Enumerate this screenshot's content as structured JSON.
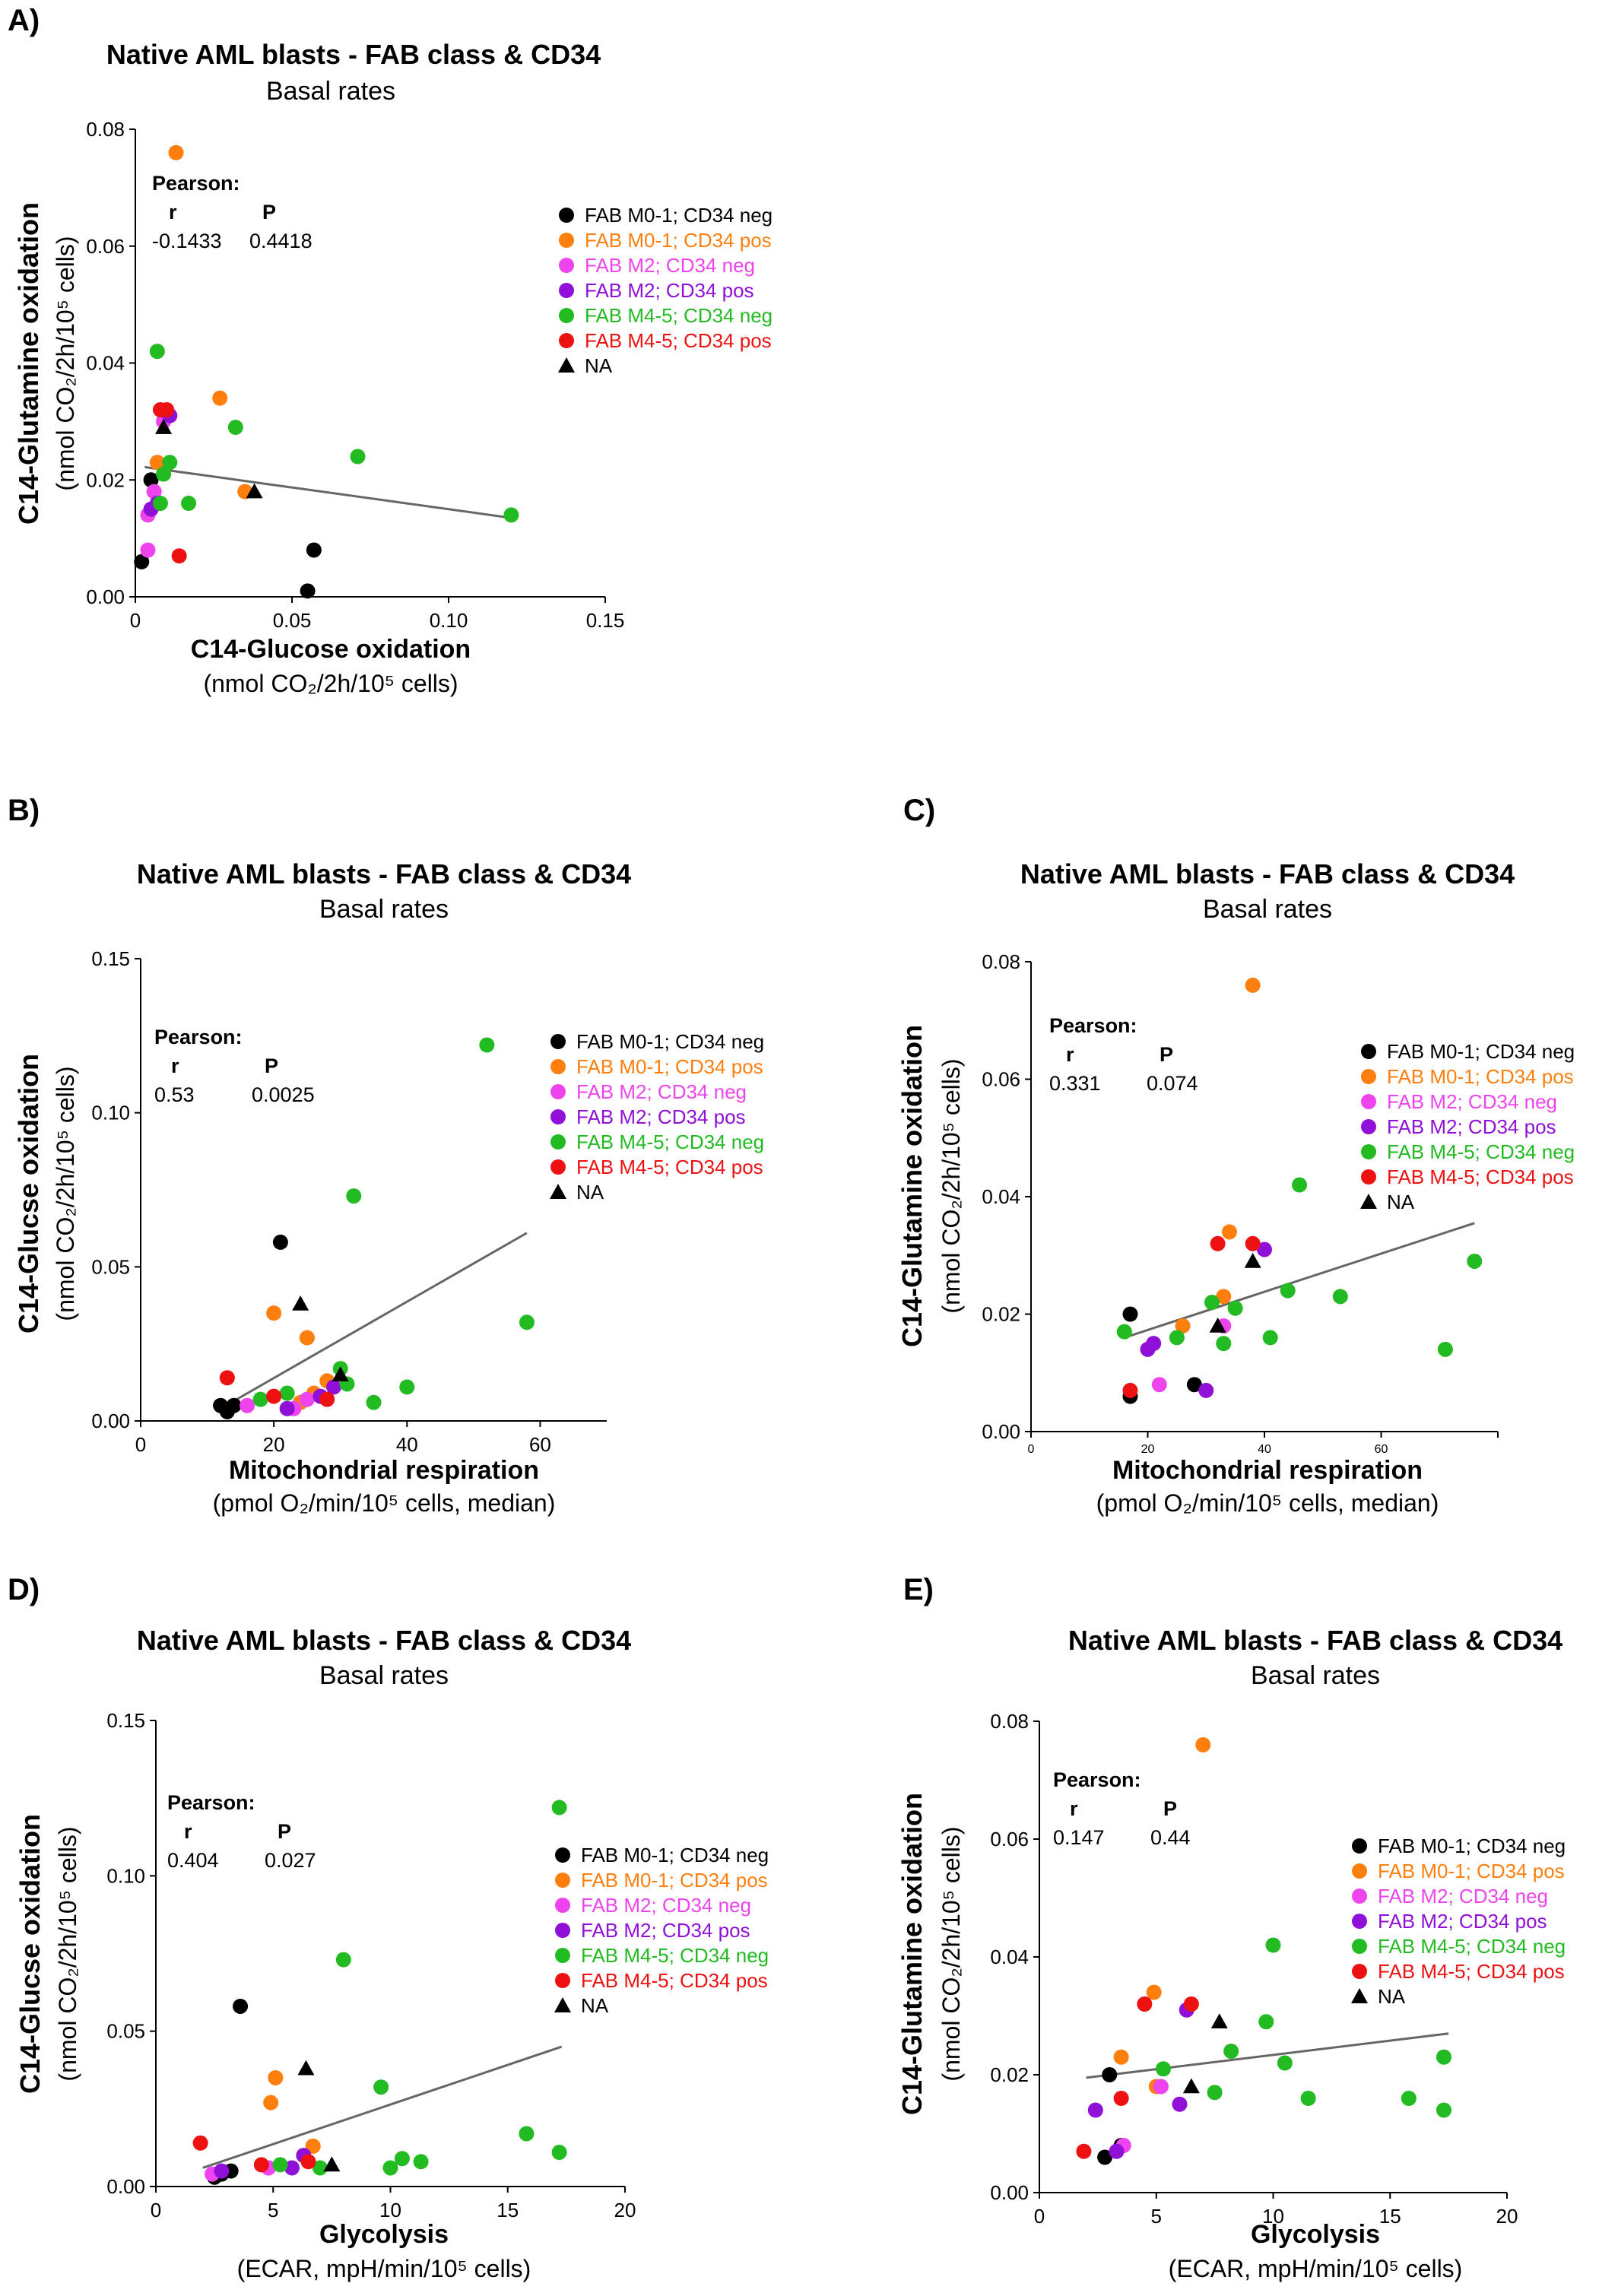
{
  "legend_items": [
    {
      "label": "FAB M0-1; CD34 neg",
      "color": "#000000",
      "marker": "circle"
    },
    {
      "label": "FAB M0-1; CD34 pos",
      "color": "#ff7f0e",
      "marker": "circle"
    },
    {
      "label": "FAB M2; CD34 neg",
      "color": "#ee44ee",
      "marker": "circle"
    },
    {
      "label": "FAB M2; CD34 pos",
      "color": "#9010d8",
      "marker": "circle"
    },
    {
      "label": "FAB M4-5; CD34 neg",
      "color": "#22bb22",
      "marker": "circle"
    },
    {
      "label": "FAB M4-5; CD34 pos",
      "color": "#ee1111",
      "marker": "circle"
    },
    {
      "label": "NA",
      "color": "#000000",
      "marker": "triangle"
    }
  ],
  "chart_data": [
    {
      "panel": "A)",
      "type": "scatter",
      "title": "Native AML blasts - FAB class & CD34",
      "subtitle": "Basal rates",
      "xlabel": "C14-Glucose oxidation",
      "xlabel_unit": "(nmol CO₂/2h/10⁵ cells)",
      "ylabel": "C14-Glutamine oxidation",
      "ylabel_unit": "(nmol CO₂/2h/10⁵ cells)",
      "xlim": [
        0,
        0.15
      ],
      "ylim": [
        0,
        0.08
      ],
      "xticks": [
        "0",
        "0.05",
        "0.10",
        "0.15"
      ],
      "xtick_values": [
        0,
        0.05,
        0.1,
        0.15
      ],
      "yticks": [
        "0.00",
        "0.02",
        "0.04",
        "0.06",
        "0.08"
      ],
      "ytick_values": [
        0,
        0.02,
        0.04,
        0.06,
        0.08
      ],
      "stats": {
        "heading": "Pearson:",
        "r_label": "r",
        "p_label": "P",
        "r": "-0.1433",
        "p": "0.4418"
      },
      "regression": [
        [
          0.003,
          0.0222
        ],
        [
          0.12,
          0.0135
        ]
      ],
      "points": [
        {
          "x": 0.002,
          "y": 0.006,
          "g": 0
        },
        {
          "x": 0.005,
          "y": 0.02,
          "g": 0
        },
        {
          "x": 0.055,
          "y": 0.001,
          "g": 0
        },
        {
          "x": 0.057,
          "y": 0.008,
          "g": 0
        },
        {
          "x": 0.013,
          "y": 0.076,
          "g": 1
        },
        {
          "x": 0.027,
          "y": 0.034,
          "g": 1
        },
        {
          "x": 0.007,
          "y": 0.023,
          "g": 1
        },
        {
          "x": 0.035,
          "y": 0.018,
          "g": 1
        },
        {
          "x": 0.004,
          "y": 0.008,
          "g": 2
        },
        {
          "x": 0.004,
          "y": 0.014,
          "g": 2
        },
        {
          "x": 0.006,
          "y": 0.018,
          "g": 2
        },
        {
          "x": 0.009,
          "y": 0.03,
          "g": 2
        },
        {
          "x": 0.011,
          "y": 0.031,
          "g": 3
        },
        {
          "x": 0.005,
          "y": 0.015,
          "g": 3
        },
        {
          "x": 0.007,
          "y": 0.016,
          "g": 3
        },
        {
          "x": 0.007,
          "y": 0.042,
          "g": 4
        },
        {
          "x": 0.032,
          "y": 0.029,
          "g": 4
        },
        {
          "x": 0.071,
          "y": 0.024,
          "g": 4
        },
        {
          "x": 0.12,
          "y": 0.014,
          "g": 4
        },
        {
          "x": 0.011,
          "y": 0.023,
          "g": 4
        },
        {
          "x": 0.009,
          "y": 0.021,
          "g": 4
        },
        {
          "x": 0.008,
          "y": 0.016,
          "g": 4
        },
        {
          "x": 0.017,
          "y": 0.016,
          "g": 4
        },
        {
          "x": 0.008,
          "y": 0.032,
          "g": 5
        },
        {
          "x": 0.01,
          "y": 0.032,
          "g": 5
        },
        {
          "x": 0.014,
          "y": 0.007,
          "g": 5
        },
        {
          "x": 0.009,
          "y": 0.029,
          "g": 6
        },
        {
          "x": 0.038,
          "y": 0.018,
          "g": 6
        }
      ]
    },
    {
      "panel": "B)",
      "type": "scatter",
      "title": "Native AML blasts - FAB class & CD34",
      "subtitle": "Basal rates",
      "xlabel": "Mitochondrial respiration",
      "xlabel_unit": "(pmol O₂/min/10⁵ cells, median)",
      "ylabel": "C14-Glucse  oxidation",
      "ylabel_unit": "(nmol CO₂/2h/10⁵ cells)",
      "xlim": [
        0,
        70
      ],
      "ylim": [
        0,
        0.15
      ],
      "xticks": [
        "0",
        "20",
        "40",
        "60"
      ],
      "xtick_values": [
        0,
        20,
        40,
        60
      ],
      "yticks": [
        "0.00",
        "0.05",
        "0.10",
        "0.15"
      ],
      "ytick_values": [
        0,
        0.05,
        0.1,
        0.15
      ],
      "stats": {
        "heading": "Pearson:",
        "r_label": "r",
        "p_label": "P",
        "r": "0.53",
        "p": "0.0025"
      },
      "regression": [
        [
          12,
          0.004
        ],
        [
          58,
          0.061
        ]
      ],
      "points": [
        {
          "x": 21,
          "y": 0.058,
          "g": 0
        },
        {
          "x": 12,
          "y": 0.005,
          "g": 0
        },
        {
          "x": 13,
          "y": 0.003,
          "g": 0
        },
        {
          "x": 14,
          "y": 0.005,
          "g": 0
        },
        {
          "x": 20,
          "y": 0.035,
          "g": 1
        },
        {
          "x": 25,
          "y": 0.027,
          "g": 1
        },
        {
          "x": 28,
          "y": 0.013,
          "g": 1
        },
        {
          "x": 24,
          "y": 0.006,
          "g": 1
        },
        {
          "x": 26,
          "y": 0.009,
          "g": 1
        },
        {
          "x": 16,
          "y": 0.005,
          "g": 2
        },
        {
          "x": 23,
          "y": 0.004,
          "g": 2
        },
        {
          "x": 25,
          "y": 0.007,
          "g": 2
        },
        {
          "x": 22,
          "y": 0.004,
          "g": 3
        },
        {
          "x": 29,
          "y": 0.011,
          "g": 3
        },
        {
          "x": 27,
          "y": 0.008,
          "g": 3
        },
        {
          "x": 52,
          "y": 0.122,
          "g": 4
        },
        {
          "x": 32,
          "y": 0.073,
          "g": 4
        },
        {
          "x": 58,
          "y": 0.032,
          "g": 4
        },
        {
          "x": 40,
          "y": 0.011,
          "g": 4
        },
        {
          "x": 30,
          "y": 0.017,
          "g": 4
        },
        {
          "x": 35,
          "y": 0.006,
          "g": 4
        },
        {
          "x": 18,
          "y": 0.007,
          "g": 4
        },
        {
          "x": 22,
          "y": 0.009,
          "g": 4
        },
        {
          "x": 31,
          "y": 0.012,
          "g": 4
        },
        {
          "x": 13,
          "y": 0.014,
          "g": 5
        },
        {
          "x": 20,
          "y": 0.008,
          "g": 5
        },
        {
          "x": 28,
          "y": 0.007,
          "g": 5
        },
        {
          "x": 24,
          "y": 0.038,
          "g": 6
        },
        {
          "x": 30,
          "y": 0.015,
          "g": 6
        }
      ]
    },
    {
      "panel": "C)",
      "type": "scatter",
      "title": "Native AML blasts - FAB class & CD34",
      "subtitle": "Basal rates",
      "xlabel": "Mitochondrial respiration",
      "xlabel_unit": "(pmol O₂/min/10⁵ cells, median)",
      "ylabel": "C14-Glutamine oxidation",
      "ylabel_unit": "(nmol CO₂/2h/10⁵ cells)",
      "xlim": [
        0,
        80
      ],
      "ylim": [
        0,
        0.08
      ],
      "xticks": [
        "0",
        "20",
        "40",
        "60"
      ],
      "xtick_values": [
        0,
        20,
        40,
        60
      ],
      "yticks": [
        "0.00",
        "0.02",
        "0.04",
        "0.06",
        "0.08"
      ],
      "ytick_values": [
        0,
        0.02,
        0.04,
        0.06,
        0.08
      ],
      "stats": {
        "heading": "Pearson:",
        "r_label": "r",
        "p_label": "P",
        "r": "0.331",
        "p": "0.074"
      },
      "regression": [
        [
          16,
          0.016
        ],
        [
          76,
          0.0355
        ]
      ],
      "points": [
        {
          "x": 17,
          "y": 0.02,
          "g": 0
        },
        {
          "x": 17,
          "y": 0.006,
          "g": 0
        },
        {
          "x": 28,
          "y": 0.008,
          "g": 0
        },
        {
          "x": 38,
          "y": 0.076,
          "g": 1
        },
        {
          "x": 34,
          "y": 0.034,
          "g": 1
        },
        {
          "x": 33,
          "y": 0.023,
          "g": 1
        },
        {
          "x": 26,
          "y": 0.018,
          "g": 1
        },
        {
          "x": 22,
          "y": 0.008,
          "g": 2
        },
        {
          "x": 33,
          "y": 0.018,
          "g": 2
        },
        {
          "x": 40,
          "y": 0.031,
          "g": 3
        },
        {
          "x": 21,
          "y": 0.015,
          "g": 3
        },
        {
          "x": 20,
          "y": 0.014,
          "g": 3
        },
        {
          "x": 30,
          "y": 0.007,
          "g": 3
        },
        {
          "x": 46,
          "y": 0.042,
          "g": 4
        },
        {
          "x": 44,
          "y": 0.024,
          "g": 4
        },
        {
          "x": 53,
          "y": 0.023,
          "g": 4
        },
        {
          "x": 76,
          "y": 0.029,
          "g": 4
        },
        {
          "x": 71,
          "y": 0.014,
          "g": 4
        },
        {
          "x": 41,
          "y": 0.016,
          "g": 4
        },
        {
          "x": 16,
          "y": 0.017,
          "g": 4
        },
        {
          "x": 31,
          "y": 0.022,
          "g": 4
        },
        {
          "x": 35,
          "y": 0.021,
          "g": 4
        },
        {
          "x": 33,
          "y": 0.015,
          "g": 4
        },
        {
          "x": 25,
          "y": 0.016,
          "g": 4
        },
        {
          "x": 32,
          "y": 0.032,
          "g": 5
        },
        {
          "x": 38,
          "y": 0.032,
          "g": 5
        },
        {
          "x": 17,
          "y": 0.007,
          "g": 5
        },
        {
          "x": 38,
          "y": 0.029,
          "g": 6
        },
        {
          "x": 32,
          "y": 0.018,
          "g": 6
        }
      ]
    },
    {
      "panel": "D)",
      "type": "scatter",
      "title": "Native AML blasts - FAB class & CD34",
      "subtitle": "Basal rates",
      "xlabel": "Glycolysis",
      "xlabel_unit": "(ECAR, mpH/min/10⁵ cells)",
      "ylabel": "C14-Glucse  oxidation",
      "ylabel_unit": "(nmol CO₂/2h/10⁵ cells)",
      "xlim": [
        0,
        20
      ],
      "ylim": [
        0,
        0.15
      ],
      "xticks": [
        "0",
        "5",
        "10",
        "15",
        "20"
      ],
      "xtick_values": [
        0,
        5,
        10,
        15,
        20
      ],
      "yticks": [
        "0.00",
        "0.05",
        "0.10",
        "0.15"
      ],
      "ytick_values": [
        0,
        0.05,
        0.1,
        0.15
      ],
      "stats": {
        "heading": "Pearson:",
        "r_label": "r",
        "p_label": "P",
        "r": "0.404",
        "p": "0.027"
      },
      "regression": [
        [
          2,
          0.006
        ],
        [
          17.3,
          0.045
        ]
      ],
      "points": [
        {
          "x": 3.6,
          "y": 0.058,
          "g": 0
        },
        {
          "x": 2.5,
          "y": 0.003,
          "g": 0
        },
        {
          "x": 2.8,
          "y": 0.004,
          "g": 0
        },
        {
          "x": 3.2,
          "y": 0.005,
          "g": 0
        },
        {
          "x": 5.1,
          "y": 0.035,
          "g": 1
        },
        {
          "x": 4.9,
          "y": 0.027,
          "g": 1
        },
        {
          "x": 6.7,
          "y": 0.013,
          "g": 1
        },
        {
          "x": 2.4,
          "y": 0.004,
          "g": 2
        },
        {
          "x": 4.8,
          "y": 0.006,
          "g": 2
        },
        {
          "x": 6.3,
          "y": 0.01,
          "g": 3
        },
        {
          "x": 5.8,
          "y": 0.006,
          "g": 3
        },
        {
          "x": 2.8,
          "y": 0.005,
          "g": 3
        },
        {
          "x": 17.2,
          "y": 0.122,
          "g": 4
        },
        {
          "x": 8.0,
          "y": 0.073,
          "g": 4
        },
        {
          "x": 9.6,
          "y": 0.032,
          "g": 4
        },
        {
          "x": 15.8,
          "y": 0.017,
          "g": 4
        },
        {
          "x": 17.2,
          "y": 0.011,
          "g": 4
        },
        {
          "x": 10.0,
          "y": 0.006,
          "g": 4
        },
        {
          "x": 10.5,
          "y": 0.009,
          "g": 4
        },
        {
          "x": 11.3,
          "y": 0.008,
          "g": 4
        },
        {
          "x": 5.3,
          "y": 0.007,
          "g": 4
        },
        {
          "x": 7.0,
          "y": 0.006,
          "g": 4
        },
        {
          "x": 1.9,
          "y": 0.014,
          "g": 5
        },
        {
          "x": 4.5,
          "y": 0.007,
          "g": 5
        },
        {
          "x": 6.5,
          "y": 0.008,
          "g": 5
        },
        {
          "x": 6.4,
          "y": 0.038,
          "g": 6
        },
        {
          "x": 7.5,
          "y": 0.007,
          "g": 6
        }
      ]
    },
    {
      "panel": "E)",
      "type": "scatter",
      "title": "Native AML blasts - FAB class & CD34",
      "subtitle": "Basal rates",
      "xlabel": "Glycolysis",
      "xlabel_unit": "(ECAR, mpH/min/10⁵ cells)",
      "ylabel": "C14-Glutamine oxidation",
      "ylabel_unit": "(nmol CO₂/2h/10⁵ cells)",
      "xlim": [
        0,
        20
      ],
      "ylim": [
        0,
        0.08
      ],
      "xticks": [
        "0",
        "5",
        "10",
        "15",
        "20"
      ],
      "xtick_values": [
        0,
        5,
        10,
        15,
        20
      ],
      "yticks": [
        "0.00",
        "0.02",
        "0.04",
        "0.06",
        "0.08"
      ],
      "ytick_values": [
        0,
        0.02,
        0.04,
        0.06,
        0.08
      ],
      "stats": {
        "heading": "Pearson:",
        "r_label": "r",
        "p_label": "P",
        "r": "0.147",
        "p": "0.44"
      },
      "regression": [
        [
          2,
          0.0195
        ],
        [
          17.5,
          0.027
        ]
      ],
      "points": [
        {
          "x": 3.0,
          "y": 0.02,
          "g": 0
        },
        {
          "x": 2.8,
          "y": 0.006,
          "g": 0
        },
        {
          "x": 3.5,
          "y": 0.008,
          "g": 0
        },
        {
          "x": 7.0,
          "y": 0.076,
          "g": 1
        },
        {
          "x": 4.9,
          "y": 0.034,
          "g": 1
        },
        {
          "x": 3.5,
          "y": 0.023,
          "g": 1
        },
        {
          "x": 5.0,
          "y": 0.018,
          "g": 1
        },
        {
          "x": 3.6,
          "y": 0.008,
          "g": 2
        },
        {
          "x": 5.2,
          "y": 0.018,
          "g": 2
        },
        {
          "x": 6.3,
          "y": 0.031,
          "g": 3
        },
        {
          "x": 2.4,
          "y": 0.014,
          "g": 3
        },
        {
          "x": 6.0,
          "y": 0.015,
          "g": 3
        },
        {
          "x": 3.3,
          "y": 0.007,
          "g": 3
        },
        {
          "x": 10.0,
          "y": 0.042,
          "g": 4
        },
        {
          "x": 9.7,
          "y": 0.029,
          "g": 4
        },
        {
          "x": 8.2,
          "y": 0.024,
          "g": 4
        },
        {
          "x": 10.5,
          "y": 0.022,
          "g": 4
        },
        {
          "x": 11.5,
          "y": 0.016,
          "g": 4
        },
        {
          "x": 7.5,
          "y": 0.017,
          "g": 4
        },
        {
          "x": 5.3,
          "y": 0.021,
          "g": 4
        },
        {
          "x": 15.8,
          "y": 0.016,
          "g": 4
        },
        {
          "x": 17.3,
          "y": 0.023,
          "g": 4
        },
        {
          "x": 17.3,
          "y": 0.014,
          "g": 4
        },
        {
          "x": 4.5,
          "y": 0.032,
          "g": 5
        },
        {
          "x": 6.5,
          "y": 0.032,
          "g": 5
        },
        {
          "x": 1.9,
          "y": 0.007,
          "g": 5
        },
        {
          "x": 3.5,
          "y": 0.016,
          "g": 5
        },
        {
          "x": 7.7,
          "y": 0.029,
          "g": 6
        },
        {
          "x": 6.5,
          "y": 0.018,
          "g": 6
        }
      ]
    }
  ]
}
